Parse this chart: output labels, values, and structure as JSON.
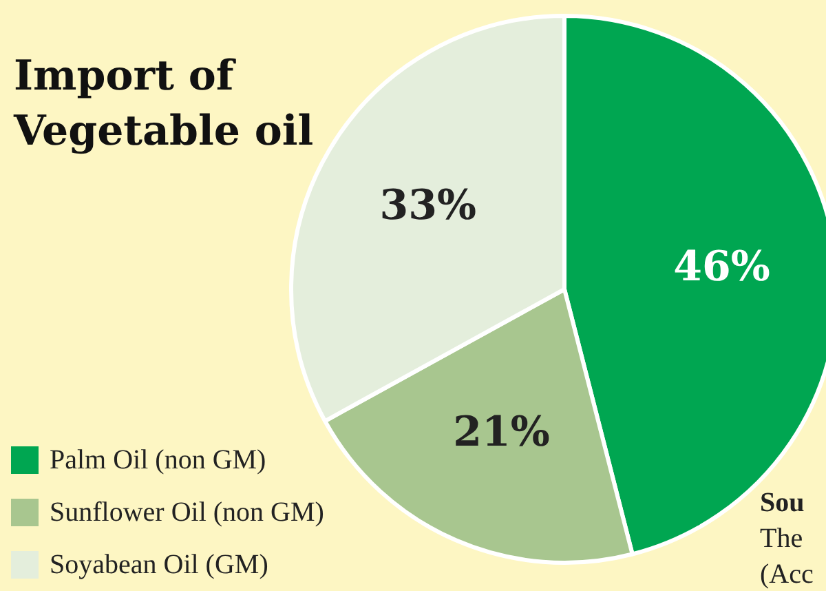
{
  "chart_data": {
    "type": "pie",
    "title": "Import of Vegetable oil",
    "categories": [
      "Palm Oil (non GM)",
      "Sunflower Oil (non GM)",
      "Soyabean Oil (GM)"
    ],
    "values": [
      46,
      21,
      33
    ],
    "colors": [
      "#00a651",
      "#a8c68f",
      "#e4eedc"
    ],
    "value_labels": [
      "46%",
      "21%",
      "33%"
    ],
    "legend": "bottom left",
    "annotations": [
      "Sou",
      "The",
      "(Acc"
    ]
  }
}
